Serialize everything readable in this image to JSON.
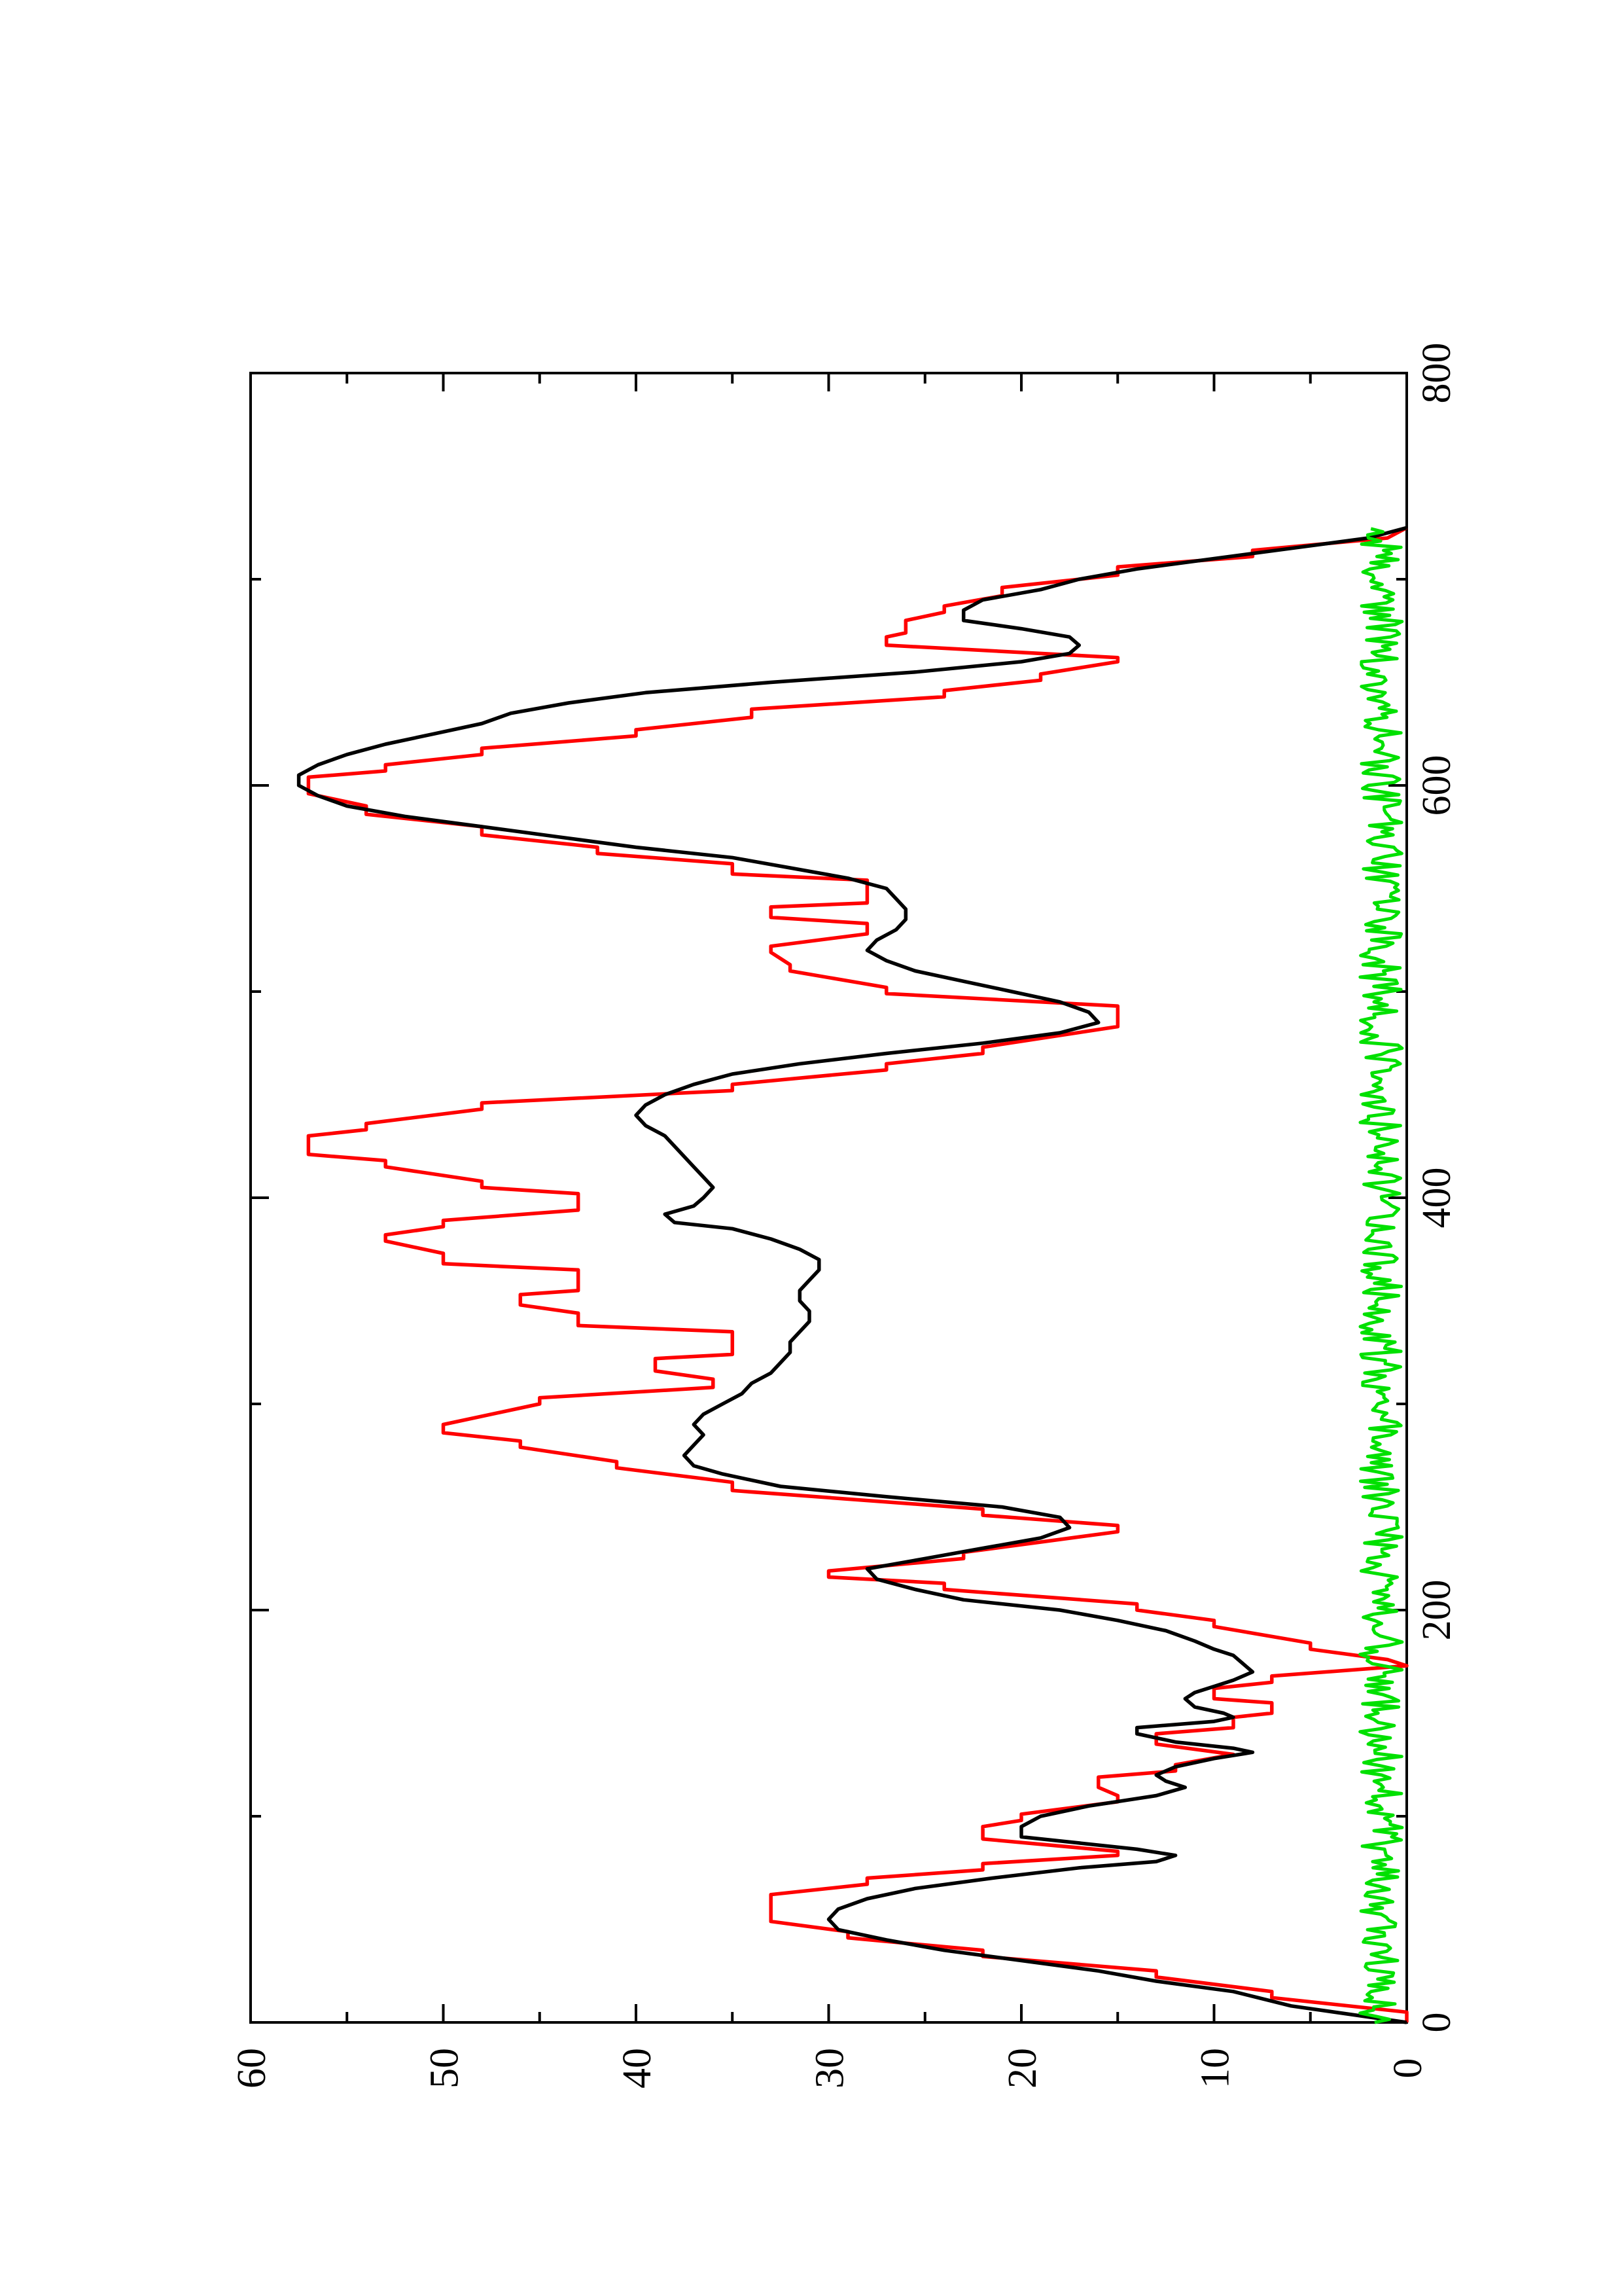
{
  "chart_data": {
    "type": "line",
    "title": "",
    "xlabel": "",
    "ylabel": "",
    "orientation": "rotated 90 degrees counter-clockwise",
    "xlim": [
      0,
      800
    ],
    "ylim": [
      0,
      60
    ],
    "x_ticks": [
      0,
      200,
      400,
      600,
      800
    ],
    "x_tick_labels": [
      "0",
      "200",
      "400",
      "600",
      "800"
    ],
    "x_minor_ticks": [
      100,
      300,
      500,
      700
    ],
    "y_ticks": [
      0,
      10,
      20,
      30,
      40,
      50,
      60
    ],
    "y_tick_labels": [
      "0",
      "10",
      "20",
      "30",
      "40",
      "50",
      "60"
    ],
    "y_minor_ticks": [
      5,
      15,
      25,
      35,
      45,
      55
    ],
    "grid": false,
    "legend": "none",
    "series": [
      {
        "color": "#ff0000",
        "style": "step",
        "points": [
          [
            0,
            0
          ],
          [
            5,
            0
          ],
          [
            12,
            7
          ],
          [
            15,
            7
          ],
          [
            22,
            13
          ],
          [
            25,
            13
          ],
          [
            32,
            22
          ],
          [
            35,
            22
          ],
          [
            41,
            29
          ],
          [
            44,
            29
          ],
          [
            49,
            33
          ],
          [
            62,
            33
          ],
          [
            67,
            28
          ],
          [
            70,
            28
          ],
          [
            74,
            22
          ],
          [
            77,
            22
          ],
          [
            81,
            15
          ],
          [
            83,
            15
          ],
          [
            89,
            22
          ],
          [
            95,
            22
          ],
          [
            98,
            20
          ],
          [
            101,
            20
          ],
          [
            107,
            15
          ],
          [
            110,
            15
          ],
          [
            114,
            16
          ],
          [
            119,
            16
          ],
          [
            122,
            12
          ],
          [
            125,
            12
          ],
          [
            130,
            9
          ],
          [
            135,
            13
          ],
          [
            140,
            13
          ],
          [
            143,
            9
          ],
          [
            148,
            9
          ],
          [
            150,
            7
          ],
          [
            155,
            7
          ],
          [
            157,
            10
          ],
          [
            162,
            10
          ],
          [
            165,
            7
          ],
          [
            168,
            7
          ],
          [
            173,
            0
          ],
          [
            176,
            1
          ],
          [
            181,
            5
          ],
          [
            184,
            5
          ],
          [
            192,
            10
          ],
          [
            195,
            10
          ],
          [
            200,
            14
          ],
          [
            203,
            14
          ],
          [
            210,
            24
          ],
          [
            213,
            24
          ],
          [
            216,
            30
          ],
          [
            219,
            30
          ],
          [
            225,
            23
          ],
          [
            228,
            23
          ],
          [
            238,
            15
          ],
          [
            241,
            15
          ],
          [
            246,
            22
          ],
          [
            249,
            22
          ],
          [
            258,
            35
          ],
          [
            262,
            35
          ],
          [
            269,
            41
          ],
          [
            272,
            41
          ],
          [
            279,
            46
          ],
          [
            282,
            46
          ],
          [
            286,
            50
          ],
          [
            290,
            50
          ],
          [
            300,
            45
          ],
          [
            303,
            45
          ],
          [
            308,
            36
          ],
          [
            312,
            36
          ],
          [
            316,
            39
          ],
          [
            322,
            39
          ],
          [
            324,
            35
          ],
          [
            335,
            35
          ],
          [
            338,
            43
          ],
          [
            344,
            43
          ],
          [
            348,
            46
          ],
          [
            353,
            46
          ],
          [
            355,
            43
          ],
          [
            365,
            43
          ],
          [
            368,
            50
          ],
          [
            373,
            50
          ],
          [
            379,
            53
          ],
          [
            382,
            53
          ],
          [
            386,
            50
          ],
          [
            389,
            50
          ],
          [
            394,
            43
          ],
          [
            402,
            43
          ],
          [
            405,
            48
          ],
          [
            408,
            48
          ],
          [
            415,
            53
          ],
          [
            418,
            53
          ],
          [
            421,
            57
          ],
          [
            430,
            57
          ],
          [
            433,
            54
          ],
          [
            436,
            54
          ],
          [
            443,
            48
          ],
          [
            446,
            48
          ],
          [
            452,
            35
          ],
          [
            455,
            35
          ],
          [
            462,
            27
          ],
          [
            465,
            27
          ],
          [
            470,
            22
          ],
          [
            473,
            22
          ],
          [
            483,
            15
          ],
          [
            493,
            15
          ],
          [
            499,
            27
          ],
          [
            502,
            27
          ],
          [
            510,
            32
          ],
          [
            513,
            32
          ],
          [
            519,
            33
          ],
          [
            522,
            33
          ],
          [
            528,
            28
          ],
          [
            533,
            28
          ],
          [
            536,
            33
          ],
          [
            541,
            33
          ],
          [
            543,
            28
          ],
          [
            554,
            28
          ],
          [
            557,
            35
          ],
          [
            562,
            35
          ],
          [
            567,
            42
          ],
          [
            570,
            42
          ],
          [
            576,
            48
          ],
          [
            580,
            48
          ],
          [
            586,
            54
          ],
          [
            590,
            54
          ],
          [
            596,
            57
          ],
          [
            604,
            57
          ],
          [
            607,
            53
          ],
          [
            610,
            53
          ],
          [
            615,
            48
          ],
          [
            618,
            48
          ],
          [
            624,
            40
          ],
          [
            627,
            40
          ],
          [
            633,
            34
          ],
          [
            637,
            34
          ],
          [
            643,
            24
          ],
          [
            646,
            24
          ],
          [
            651,
            19
          ],
          [
            654,
            19
          ],
          [
            660,
            15
          ],
          [
            662,
            15
          ],
          [
            668,
            27
          ],
          [
            672,
            27
          ],
          [
            674,
            26
          ],
          [
            680,
            26
          ],
          [
            684,
            24
          ],
          [
            687,
            24
          ],
          [
            692,
            21
          ],
          [
            696,
            21
          ],
          [
            702,
            15
          ],
          [
            706,
            15
          ],
          [
            711,
            8
          ],
          [
            714,
            8
          ],
          [
            720,
            1
          ],
          [
            725,
            0
          ]
        ]
      },
      {
        "color": "#000000",
        "style": "line",
        "points": [
          [
            0,
            0
          ],
          [
            8,
            6
          ],
          [
            15,
            9
          ],
          [
            20,
            13
          ],
          [
            25,
            16
          ],
          [
            30,
            20
          ],
          [
            35,
            24
          ],
          [
            40,
            27
          ],
          [
            45,
            29.5
          ],
          [
            50,
            30
          ],
          [
            55,
            29.5
          ],
          [
            60,
            28
          ],
          [
            65,
            25.5
          ],
          [
            70,
            21.5
          ],
          [
            75,
            17
          ],
          [
            78,
            13
          ],
          [
            81,
            12
          ],
          [
            84,
            14
          ],
          [
            87,
            17
          ],
          [
            90,
            20
          ],
          [
            95,
            20
          ],
          [
            100,
            19
          ],
          [
            105,
            16.5
          ],
          [
            110,
            13
          ],
          [
            114,
            11.5
          ],
          [
            117,
            12.5
          ],
          [
            120,
            13
          ],
          [
            124,
            12
          ],
          [
            128,
            10
          ],
          [
            131,
            8
          ],
          [
            133,
            9
          ],
          [
            136,
            12
          ],
          [
            140,
            14
          ],
          [
            143,
            14
          ],
          [
            146,
            10
          ],
          [
            148,
            9
          ],
          [
            150,
            9.5
          ],
          [
            153,
            11
          ],
          [
            157,
            11.5
          ],
          [
            160,
            11
          ],
          [
            163,
            10
          ],
          [
            166,
            9
          ],
          [
            170,
            8
          ],
          [
            174,
            8.5
          ],
          [
            178,
            9
          ],
          [
            181,
            10
          ],
          [
            185,
            11
          ],
          [
            190,
            12.5
          ],
          [
            195,
            15
          ],
          [
            200,
            18
          ],
          [
            205,
            23
          ],
          [
            210,
            25.5
          ],
          [
            215,
            27.5
          ],
          [
            220,
            28
          ],
          [
            225,
            25
          ],
          [
            230,
            22
          ],
          [
            235,
            19
          ],
          [
            240,
            17.5
          ],
          [
            245,
            18
          ],
          [
            250,
            21
          ],
          [
            255,
            27
          ],
          [
            260,
            32.5
          ],
          [
            266,
            35.5
          ],
          [
            270,
            37
          ],
          [
            275,
            37.5
          ],
          [
            280,
            37
          ],
          [
            285,
            36.5
          ],
          [
            290,
            37
          ],
          [
            295,
            36.5
          ],
          [
            300,
            35.5
          ],
          [
            305,
            34.5
          ],
          [
            310,
            34
          ],
          [
            315,
            33
          ],
          [
            320,
            32.5
          ],
          [
            325,
            32
          ],
          [
            330,
            32
          ],
          [
            335,
            31.5
          ],
          [
            340,
            31
          ],
          [
            345,
            31
          ],
          [
            350,
            31.5
          ],
          [
            355,
            31.5
          ],
          [
            360,
            31
          ],
          [
            365,
            30.5
          ],
          [
            370,
            30.5
          ],
          [
            375,
            31.5
          ],
          [
            380,
            33
          ],
          [
            385,
            35
          ],
          [
            388,
            38
          ],
          [
            392,
            38.5
          ],
          [
            396,
            37
          ],
          [
            400,
            36.5
          ],
          [
            405,
            36
          ],
          [
            410,
            36.5
          ],
          [
            415,
            37
          ],
          [
            420,
            37.5
          ],
          [
            425,
            38
          ],
          [
            430,
            38.5
          ],
          [
            435,
            39.5
          ],
          [
            440,
            40
          ],
          [
            445,
            39.5
          ],
          [
            450,
            38.5
          ],
          [
            455,
            37
          ],
          [
            460,
            35
          ],
          [
            465,
            31.5
          ],
          [
            470,
            27
          ],
          [
            475,
            22
          ],
          [
            480,
            18
          ],
          [
            485,
            16
          ],
          [
            490,
            16.5
          ],
          [
            495,
            18
          ],
          [
            500,
            20.5
          ],
          [
            505,
            23
          ],
          [
            510,
            25.5
          ],
          [
            515,
            27
          ],
          [
            520,
            28
          ],
          [
            525,
            27.5
          ],
          [
            530,
            26.5
          ],
          [
            535,
            26
          ],
          [
            540,
            26
          ],
          [
            545,
            26.5
          ],
          [
            550,
            27
          ],
          [
            555,
            29
          ],
          [
            560,
            32
          ],
          [
            565,
            35
          ],
          [
            570,
            40
          ],
          [
            575,
            44
          ],
          [
            580,
            48
          ],
          [
            585,
            52
          ],
          [
            590,
            55
          ],
          [
            595,
            56.5
          ],
          [
            600,
            57.5
          ],
          [
            605,
            57.5
          ],
          [
            610,
            56.5
          ],
          [
            615,
            55
          ],
          [
            620,
            53
          ],
          [
            625,
            50.5
          ],
          [
            630,
            48
          ],
          [
            635,
            46.5
          ],
          [
            640,
            43.5
          ],
          [
            645,
            39.5
          ],
          [
            650,
            33
          ],
          [
            655,
            25.5
          ],
          [
            660,
            20
          ],
          [
            664,
            17.5
          ],
          [
            668,
            17
          ],
          [
            672,
            17.5
          ],
          [
            676,
            20
          ],
          [
            680,
            23
          ],
          [
            685,
            23
          ],
          [
            690,
            22
          ],
          [
            695,
            19
          ],
          [
            700,
            17
          ],
          [
            705,
            14
          ],
          [
            710,
            10
          ],
          [
            715,
            6
          ],
          [
            720,
            2
          ],
          [
            725,
            0
          ]
        ]
      },
      {
        "color": "#00e000",
        "style": "noise",
        "x_range": [
          0,
          725
        ],
        "mean": 1.0,
        "min": 0,
        "max": 3
      }
    ]
  }
}
